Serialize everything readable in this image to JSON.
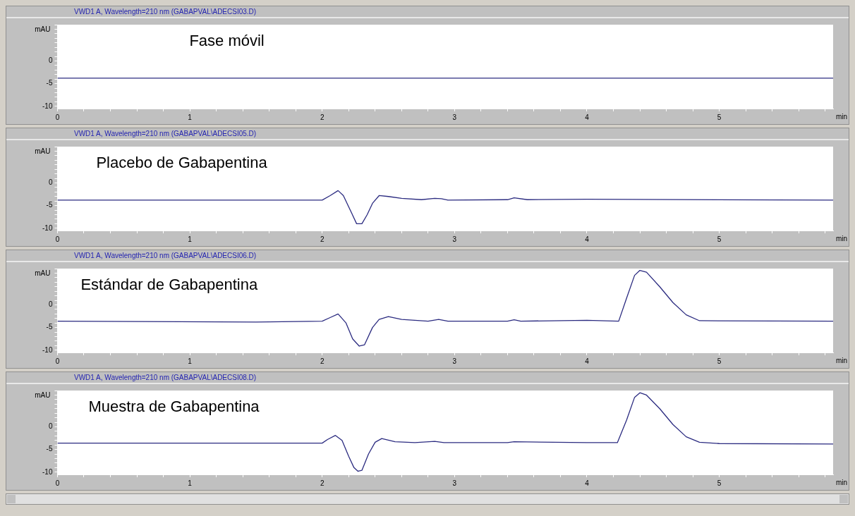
{
  "chart_data": [
    {
      "type": "line",
      "title": "VWD1 A, Wavelength=210 nm (GABAPVAL\\ADECSI03.D)",
      "xlabel": "min",
      "ylabel": "mAU",
      "annotations": [
        "Fase móvil"
      ],
      "legend": false,
      "marker": "none",
      "line_style": "solid",
      "xlim": [
        0,
        5.86
      ],
      "ylim": [
        -10.5,
        8
      ],
      "xticks": [
        0,
        {
          "value": 0.2,
          "label": null
        },
        {
          "value": 0.4,
          "label": null
        },
        {
          "value": 0.6,
          "label": null
        },
        {
          "value": 0.8,
          "label": null
        },
        1,
        {
          "value": 1.2,
          "label": null
        },
        {
          "value": 1.4,
          "label": null
        },
        {
          "value": 1.6,
          "label": null
        },
        {
          "value": 1.8,
          "label": null
        },
        2,
        {
          "value": 2.2,
          "label": null
        },
        {
          "value": 2.4,
          "label": null
        },
        {
          "value": 2.6,
          "label": null
        },
        {
          "value": 2.8,
          "label": null
        },
        3,
        {
          "value": 3.2,
          "label": null
        },
        {
          "value": 3.4,
          "label": null
        },
        {
          "value": 3.6,
          "label": null
        },
        {
          "value": 3.8,
          "label": null
        },
        4,
        {
          "value": 4.2,
          "label": null
        },
        {
          "value": 4.4,
          "label": null
        },
        {
          "value": 4.6,
          "label": null
        },
        {
          "value": 4.8,
          "label": null
        },
        5,
        {
          "value": 5.2,
          "label": null
        },
        {
          "value": 5.4,
          "label": null
        },
        {
          "value": 5.6,
          "label": null
        },
        {
          "value": 5.8,
          "label": null
        }
      ],
      "yticks": [
        -10,
        {
          "value": -9,
          "label": null
        },
        {
          "value": -8,
          "label": null
        },
        {
          "value": -7,
          "label": null
        },
        {
          "value": -6,
          "label": null
        },
        -5,
        {
          "value": -4,
          "label": null
        },
        {
          "value": -3,
          "label": null
        },
        {
          "value": -2,
          "label": null
        },
        {
          "value": -1,
          "label": null
        },
        0,
        {
          "value": 1,
          "label": null
        },
        {
          "value": 2,
          "label": null
        },
        {
          "value": 3,
          "label": null
        },
        {
          "value": 4,
          "label": null
        },
        {
          "value": 5,
          "label": null
        },
        {
          "value": 6,
          "label": null
        },
        {
          "value": 7,
          "label": null
        },
        {
          "value": 8,
          "label": null
        }
      ],
      "series": [
        {
          "color": "#2b2b80",
          "x": [
            0,
            2,
            4,
            5.86
          ],
          "values": [
            -3.8,
            -3.8,
            -3.8,
            -3.8
          ]
        }
      ]
    },
    {
      "type": "line",
      "title": "VWD1 A, Wavelength=210 nm (GABAPVAL\\ADECSI05.D)",
      "xlabel": "min",
      "ylabel": "mAU",
      "annotations": [
        "Placebo de Gabapentina"
      ],
      "legend": false,
      "marker": "none",
      "line_style": "solid",
      "xlim": [
        0,
        5.86
      ],
      "ylim": [
        -10.5,
        8
      ],
      "xticks": [
        0,
        {
          "value": 0.2,
          "label": null
        },
        {
          "value": 0.4,
          "label": null
        },
        {
          "value": 0.6,
          "label": null
        },
        {
          "value": 0.8,
          "label": null
        },
        1,
        {
          "value": 1.2,
          "label": null
        },
        {
          "value": 1.4,
          "label": null
        },
        {
          "value": 1.6,
          "label": null
        },
        {
          "value": 1.8,
          "label": null
        },
        2,
        {
          "value": 2.2,
          "label": null
        },
        {
          "value": 2.4,
          "label": null
        },
        {
          "value": 2.6,
          "label": null
        },
        {
          "value": 2.8,
          "label": null
        },
        3,
        {
          "value": 3.2,
          "label": null
        },
        {
          "value": 3.4,
          "label": null
        },
        {
          "value": 3.6,
          "label": null
        },
        {
          "value": 3.8,
          "label": null
        },
        4,
        {
          "value": 4.2,
          "label": null
        },
        {
          "value": 4.4,
          "label": null
        },
        {
          "value": 4.6,
          "label": null
        },
        {
          "value": 4.8,
          "label": null
        },
        5,
        {
          "value": 5.2,
          "label": null
        },
        {
          "value": 5.4,
          "label": null
        },
        {
          "value": 5.6,
          "label": null
        },
        {
          "value": 5.8,
          "label": null
        }
      ],
      "yticks": [
        -10,
        {
          "value": -9,
          "label": null
        },
        {
          "value": -8,
          "label": null
        },
        {
          "value": -7,
          "label": null
        },
        {
          "value": -6,
          "label": null
        },
        -5,
        {
          "value": -4,
          "label": null
        },
        {
          "value": -3,
          "label": null
        },
        {
          "value": -2,
          "label": null
        },
        {
          "value": -1,
          "label": null
        },
        0,
        {
          "value": 1,
          "label": null
        },
        {
          "value": 2,
          "label": null
        },
        {
          "value": 3,
          "label": null
        },
        {
          "value": 4,
          "label": null
        },
        {
          "value": 5,
          "label": null
        },
        {
          "value": 6,
          "label": null
        },
        {
          "value": 7,
          "label": null
        },
        {
          "value": 8,
          "label": null
        }
      ],
      "series": [
        {
          "color": "#2b2b80",
          "x": [
            0,
            2.0,
            2.06,
            2.12,
            2.16,
            2.22,
            2.26,
            2.3,
            2.34,
            2.38,
            2.43,
            2.5,
            2.6,
            2.75,
            2.85,
            2.9,
            2.95,
            3.4,
            3.45,
            3.55,
            4.0,
            5.86
          ],
          "values": [
            -3.8,
            -3.8,
            -2.8,
            -1.7,
            -2.8,
            -6.5,
            -9.0,
            -9.0,
            -7.0,
            -4.5,
            -2.8,
            -3.0,
            -3.4,
            -3.7,
            -3.4,
            -3.5,
            -3.8,
            -3.7,
            -3.3,
            -3.7,
            -3.6,
            -3.8
          ]
        }
      ]
    },
    {
      "type": "line",
      "title": "VWD1 A, Wavelength=210 nm (GABAPVAL\\ADECSI06.D)",
      "xlabel": "min",
      "ylabel": "mAU",
      "annotations": [
        "Estándar de Gabapentina"
      ],
      "legend": false,
      "marker": "none",
      "line_style": "solid",
      "xlim": [
        0,
        5.86
      ],
      "ylim": [
        -10.5,
        8
      ],
      "xticks": [
        0,
        {
          "value": 0.2,
          "label": null
        },
        {
          "value": 0.4,
          "label": null
        },
        {
          "value": 0.6,
          "label": null
        },
        {
          "value": 0.8,
          "label": null
        },
        1,
        {
          "value": 1.2,
          "label": null
        },
        {
          "value": 1.4,
          "label": null
        },
        {
          "value": 1.6,
          "label": null
        },
        {
          "value": 1.8,
          "label": null
        },
        2,
        {
          "value": 2.2,
          "label": null
        },
        {
          "value": 2.4,
          "label": null
        },
        {
          "value": 2.6,
          "label": null
        },
        {
          "value": 2.8,
          "label": null
        },
        3,
        {
          "value": 3.2,
          "label": null
        },
        {
          "value": 3.4,
          "label": null
        },
        {
          "value": 3.6,
          "label": null
        },
        {
          "value": 3.8,
          "label": null
        },
        4,
        {
          "value": 4.2,
          "label": null
        },
        {
          "value": 4.4,
          "label": null
        },
        {
          "value": 4.6,
          "label": null
        },
        {
          "value": 4.8,
          "label": null
        },
        5,
        {
          "value": 5.2,
          "label": null
        },
        {
          "value": 5.4,
          "label": null
        },
        {
          "value": 5.6,
          "label": null
        },
        {
          "value": 5.8,
          "label": null
        }
      ],
      "yticks": [
        -10,
        {
          "value": -9,
          "label": null
        },
        {
          "value": -8,
          "label": null
        },
        {
          "value": -7,
          "label": null
        },
        {
          "value": -6,
          "label": null
        },
        -5,
        {
          "value": -4,
          "label": null
        },
        {
          "value": -3,
          "label": null
        },
        {
          "value": -2,
          "label": null
        },
        {
          "value": -1,
          "label": null
        },
        0,
        {
          "value": 1,
          "label": null
        },
        {
          "value": 2,
          "label": null
        },
        {
          "value": 3,
          "label": null
        },
        {
          "value": 4,
          "label": null
        },
        {
          "value": 5,
          "label": null
        },
        {
          "value": 6,
          "label": null
        },
        {
          "value": 7,
          "label": null
        },
        {
          "value": 8,
          "label": null
        }
      ],
      "series": [
        {
          "color": "#2b2b80",
          "x": [
            0,
            1.5,
            2.0,
            2.06,
            2.12,
            2.18,
            2.23,
            2.28,
            2.32,
            2.38,
            2.43,
            2.5,
            2.6,
            2.8,
            2.88,
            2.95,
            3.4,
            3.45,
            3.5,
            4.0,
            4.24,
            4.3,
            4.36,
            4.4,
            4.45,
            4.55,
            4.65,
            4.75,
            4.85,
            5.86
          ],
          "values": [
            -3.6,
            -3.8,
            -3.6,
            -2.8,
            -2.0,
            -4.0,
            -7.5,
            -9.1,
            -8.8,
            -5.0,
            -3.2,
            -2.6,
            -3.2,
            -3.6,
            -3.2,
            -3.6,
            -3.6,
            -3.3,
            -3.6,
            -3.4,
            -3.6,
            1.5,
            6.5,
            7.6,
            7.2,
            4.0,
            0.5,
            -2.2,
            -3.5,
            -3.6
          ]
        }
      ]
    },
    {
      "type": "line",
      "title": "VWD1 A, Wavelength=210 nm (GABAPVAL\\ADECSI08.D)",
      "xlabel": "min",
      "ylabel": "mAU",
      "annotations": [
        "Muestra de Gabapentina"
      ],
      "legend": false,
      "marker": "none",
      "line_style": "solid",
      "xlim": [
        0,
        5.86
      ],
      "ylim": [
        -10.5,
        8
      ],
      "xticks": [
        0,
        {
          "value": 0.2,
          "label": null
        },
        {
          "value": 0.4,
          "label": null
        },
        {
          "value": 0.6,
          "label": null
        },
        {
          "value": 0.8,
          "label": null
        },
        1,
        {
          "value": 1.2,
          "label": null
        },
        {
          "value": 1.4,
          "label": null
        },
        {
          "value": 1.6,
          "label": null
        },
        {
          "value": 1.8,
          "label": null
        },
        2,
        {
          "value": 2.2,
          "label": null
        },
        {
          "value": 2.4,
          "label": null
        },
        {
          "value": 2.6,
          "label": null
        },
        {
          "value": 2.8,
          "label": null
        },
        3,
        {
          "value": 3.2,
          "label": null
        },
        {
          "value": 3.4,
          "label": null
        },
        {
          "value": 3.6,
          "label": null
        },
        {
          "value": 3.8,
          "label": null
        },
        4,
        {
          "value": 4.2,
          "label": null
        },
        {
          "value": 4.4,
          "label": null
        },
        {
          "value": 4.6,
          "label": null
        },
        {
          "value": 4.8,
          "label": null
        },
        5,
        {
          "value": 5.2,
          "label": null
        },
        {
          "value": 5.4,
          "label": null
        },
        {
          "value": 5.6,
          "label": null
        },
        {
          "value": 5.8,
          "label": null
        }
      ],
      "yticks": [
        -10,
        {
          "value": -9,
          "label": null
        },
        {
          "value": -8,
          "label": null
        },
        {
          "value": -7,
          "label": null
        },
        {
          "value": -6,
          "label": null
        },
        -5,
        {
          "value": -4,
          "label": null
        },
        {
          "value": -3,
          "label": null
        },
        {
          "value": -2,
          "label": null
        },
        {
          "value": -1,
          "label": null
        },
        0,
        {
          "value": 1,
          "label": null
        },
        {
          "value": 2,
          "label": null
        },
        {
          "value": 3,
          "label": null
        },
        {
          "value": 4,
          "label": null
        },
        {
          "value": 5,
          "label": null
        },
        {
          "value": 6,
          "label": null
        },
        {
          "value": 7,
          "label": null
        },
        {
          "value": 8,
          "label": null
        }
      ],
      "series": [
        {
          "color": "#2b2b80",
          "x": [
            0,
            2.0,
            2.04,
            2.1,
            2.15,
            2.2,
            2.24,
            2.27,
            2.3,
            2.35,
            2.4,
            2.45,
            2.55,
            2.7,
            2.85,
            2.92,
            3.4,
            3.45,
            4.0,
            4.23,
            4.3,
            4.36,
            4.4,
            4.45,
            4.55,
            4.65,
            4.75,
            4.85,
            5.0,
            5.86
          ],
          "values": [
            -3.6,
            -3.6,
            -2.8,
            -1.9,
            -3.0,
            -6.5,
            -9.0,
            -9.8,
            -9.6,
            -6.0,
            -3.4,
            -2.6,
            -3.3,
            -3.5,
            -3.2,
            -3.5,
            -3.5,
            -3.3,
            -3.5,
            -3.5,
            1.5,
            6.5,
            7.5,
            7.0,
            4.0,
            0.5,
            -2.2,
            -3.4,
            -3.7,
            -3.8
          ]
        }
      ]
    }
  ]
}
